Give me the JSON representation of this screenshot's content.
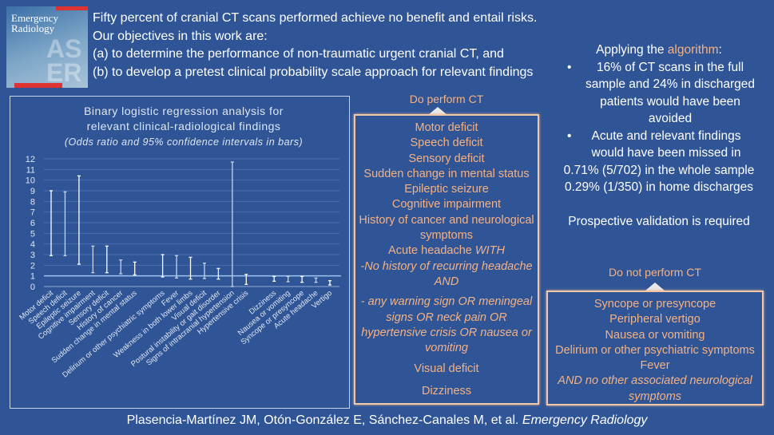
{
  "cover": {
    "journal_title": "Emergency Radiology"
  },
  "intro": {
    "lines": [
      "Fifty percent of cranial CT scans performed achieve no benefit and entail risks.",
      "Our objectives in this work are:",
      "(a)  to determine the performance of non-traumatic urgent cranial CT, and",
      "(b)  to develop a pretest clinical probability scale approach for relevant findings"
    ]
  },
  "chart_data": {
    "type": "errorbar",
    "title": "Binary logistic regression analysis for relevant clinical-radiological findings",
    "title_line1": "Binary logistic regression analysis for",
    "title_line2": "relevant clinical-radiological findings",
    "subtitle": "(Odds ratio and 95% confidence intervals in bars)",
    "ylim": [
      0,
      12
    ],
    "yticks": [
      "0",
      "1",
      "2",
      "3",
      "4",
      "5",
      "6",
      "7",
      "8",
      "9",
      "10",
      "11",
      "12"
    ],
    "reference_line": 1,
    "grid": true,
    "categories": [
      "Motor deficit",
      "Speech deficit",
      "Epileptic seizure",
      "Cognitive impairment",
      "Sensory deficit",
      "History of cancer",
      "Sudden change in mental status",
      "",
      "Delirium or other psychiatric symptoms",
      "Fever",
      "Weakness in both lower limbs",
      "Visual deficit",
      "Postural instability or gait disorder",
      "Signs of intracranial hypertension",
      "Hypertensive crisis",
      "",
      "Dizziness",
      "Nausea or vomiting",
      "Syncope or presyncope",
      "Acute headache",
      "Vertigo"
    ],
    "ci_lower": [
      2.9,
      2.9,
      2.1,
      1.3,
      1.3,
      1.2,
      1.1,
      null,
      0.9,
      0.8,
      0.7,
      0.75,
      0.7,
      0.0,
      0.2,
      null,
      0.5,
      0.45,
      0.4,
      0.4,
      0.15
    ],
    "ci_upper": [
      9.0,
      8.9,
      10.4,
      3.8,
      3.8,
      2.5,
      2.3,
      null,
      3.0,
      2.9,
      2.75,
      2.2,
      1.7,
      11.7,
      1.15,
      null,
      0.95,
      0.95,
      0.95,
      0.8,
      0.55
    ]
  },
  "do_ct": {
    "heading": "Do perform CT",
    "items": [
      "Motor deficit",
      "Speech deficit",
      "Sensory deficit",
      "Sudden change in mental status",
      "Epileptic seizure",
      "Cognitive impairment",
      "History of cancer and neurological symptoms"
    ],
    "headache": "Acute headache ",
    "headache_with": "WITH",
    "cond1": "-No history of recurring headache",
    "and": "AND",
    "cond2": "- any warning sign OR meningeal signs OR neck pain OR hypertensive crisis OR nausea or vomiting",
    "visual": "Visual deficit",
    "dizziness": "Dizziness"
  },
  "apply": {
    "heading_pre": "Applying the ",
    "heading_word": "algorithm",
    "heading_post": ":",
    "bullet1": "16% of CT scans in the full sample and 24% in discharged patients would have been avoided",
    "bullet2": "Acute and relevant findings would have been missed in",
    "line3": "0.71% (5/702) in the whole sample",
    "line4": "0.29% (1/350) in home discharges",
    "validation": "Prospective validation is required",
    "bullet_char": "•"
  },
  "dont_ct": {
    "heading": "Do not perform CT",
    "items": [
      "Syncope or presyncope",
      "Peripheral vertigo",
      "Nausea or vomiting",
      "Delirium or other psychiatric symptoms",
      "Fever"
    ],
    "note": "AND no other associated neurological symptoms"
  },
  "citation": {
    "authors": "Plasencia-Martínez JM, Otón-González E, Sánchez-Canales M, et al. ",
    "journal": "Emergency Radiology"
  },
  "colors": {
    "background": "#2F5597",
    "accent": "#F4B183"
  }
}
